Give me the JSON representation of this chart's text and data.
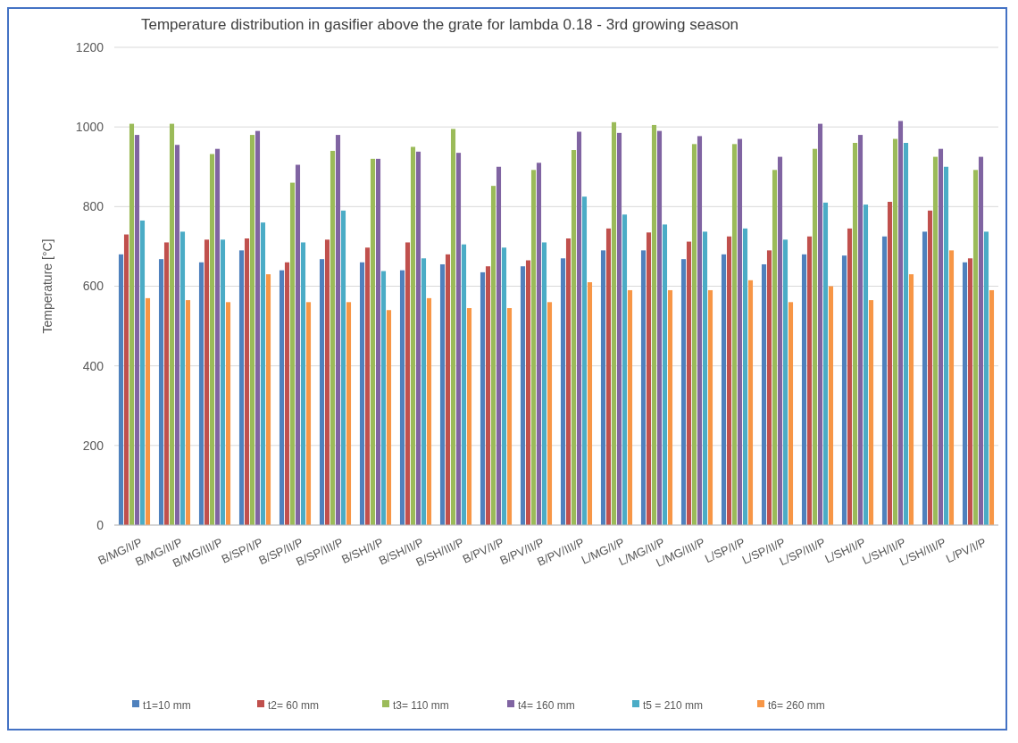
{
  "chart_data": {
    "type": "bar",
    "title": "Temperature distribution in gasifier  above the grate for lambda 0.18 - 3rd growing season",
    "ylabel": "Temperature [°C]",
    "categories": [
      "B/MG/I/P",
      "B/MG/II/P",
      "B/MG/III/P",
      "B/SP/I/P",
      "B/SP/II/P",
      "B/SP/III/P",
      "B/SH/I/P",
      "B/SH/II/P",
      "B/SH/III/P",
      "B/PV/I/P",
      "B/PV/II/P",
      "B/PV/III/P",
      "L/MG/I/P",
      "L/MG/II/P",
      "L/MG/III/P",
      "L/SP/I/P",
      "L/SP/II/P",
      "L/SP/III/P",
      "L/SH/I/P",
      "L/SH/II/P",
      "L/SH/III/P",
      "L/PV/I/P"
    ],
    "series": [
      {
        "name": "t1=10 mm",
        "color": "#4f81bd",
        "values": [
          680,
          668,
          660,
          690,
          640,
          668,
          660,
          640,
          655,
          635,
          650,
          670,
          690,
          690,
          668,
          680,
          655,
          680,
          677,
          725,
          737,
          660
        ]
      },
      {
        "name": "t2= 60 mm",
        "color": "#c0504d",
        "values": [
          730,
          710,
          717,
          720,
          660,
          717,
          697,
          710,
          680,
          650,
          665,
          720,
          745,
          735,
          712,
          725,
          690,
          725,
          745,
          812,
          790,
          670
        ]
      },
      {
        "name": "t3= 110 mm",
        "color": "#9bbb59",
        "values": [
          1008,
          1008,
          932,
          980,
          860,
          940,
          920,
          950,
          995,
          852,
          892,
          942,
          1012,
          1005,
          957,
          957,
          892,
          945,
          960,
          970,
          925,
          892
        ]
      },
      {
        "name": "t4= 160 mm",
        "color": "#8064a2",
        "values": [
          980,
          955,
          945,
          990,
          905,
          980,
          920,
          938,
          935,
          900,
          910,
          988,
          985,
          990,
          977,
          970,
          925,
          1008,
          980,
          1015,
          945,
          925
        ]
      },
      {
        "name": "t5 = 210 mm",
        "color": "#4bacc6",
        "values": [
          765,
          737,
          717,
          760,
          710,
          790,
          638,
          670,
          705,
          697,
          710,
          825,
          780,
          755,
          737,
          745,
          717,
          810,
          805,
          960,
          900,
          737
        ]
      },
      {
        "name": "t6= 260 mm",
        "color": "#f79646",
        "values": [
          570,
          565,
          560,
          630,
          560,
          560,
          540,
          570,
          545,
          545,
          560,
          610,
          590,
          590,
          590,
          615,
          560,
          600,
          565,
          630,
          690,
          590
        ]
      }
    ],
    "ylim": [
      0,
      1200
    ],
    "yticks": [
      0,
      200,
      400,
      600,
      800,
      1000,
      1200
    ],
    "grid": "y",
    "legend": "bottom"
  }
}
